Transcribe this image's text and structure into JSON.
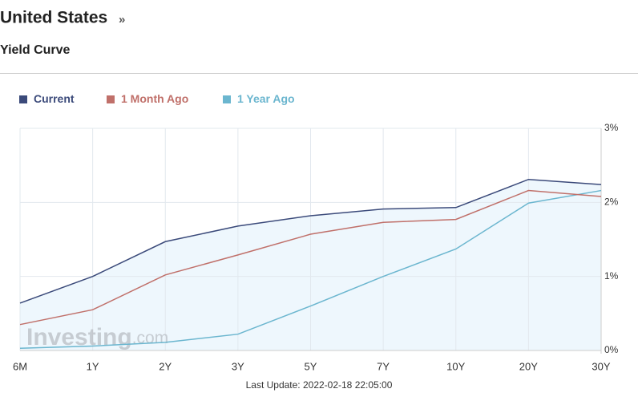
{
  "header": {
    "title": "United States",
    "title_suffix": "»",
    "subtitle": "Yield Curve"
  },
  "chart_data": {
    "type": "line",
    "categories": [
      "6M",
      "1Y",
      "2Y",
      "3Y",
      "5Y",
      "7Y",
      "10Y",
      "20Y",
      "30Y"
    ],
    "series": [
      {
        "name": "Current",
        "color": "#3b4a7a",
        "values": [
          0.64,
          1.0,
          1.47,
          1.68,
          1.82,
          1.91,
          1.93,
          2.31,
          2.24
        ]
      },
      {
        "name": "1 Month Ago",
        "color": "#c0706a",
        "values": [
          0.35,
          0.55,
          1.02,
          1.29,
          1.57,
          1.73,
          1.77,
          2.16,
          2.08
        ]
      },
      {
        "name": "1 Year Ago",
        "color": "#6bb6cf",
        "values": [
          0.03,
          0.06,
          0.11,
          0.22,
          0.6,
          1.0,
          1.37,
          1.99,
          2.16
        ]
      }
    ],
    "ylim": [
      0,
      3
    ],
    "yticks": [
      {
        "value": 0,
        "label": "0%"
      },
      {
        "value": 1,
        "label": "1%"
      },
      {
        "value": 2,
        "label": "2%"
      },
      {
        "value": 3,
        "label": "3%"
      }
    ],
    "grid": true,
    "area_fill": "#eef7fd",
    "watermark": "Investing",
    "watermark_suffix": ".com"
  },
  "footer": {
    "last_update": "Last Update: 2022-02-18 22:05:00"
  }
}
